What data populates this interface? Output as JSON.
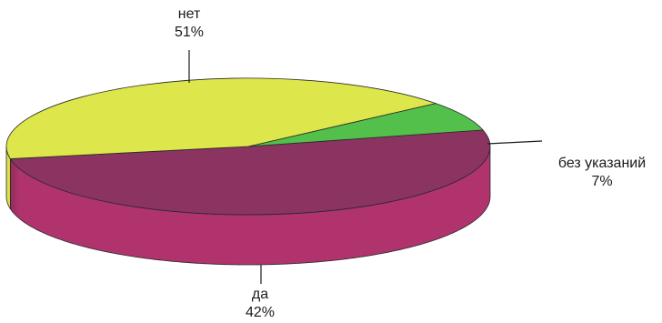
{
  "chart_data": {
    "type": "pie",
    "style": "3d",
    "slices": [
      {
        "label": "нет",
        "value": 51,
        "value_label": "51%",
        "color": "#8b3461"
      },
      {
        "label": "без указаний",
        "value": 7,
        "value_label": "7%",
        "color": "#52c04a"
      },
      {
        "label": "да",
        "value": 42,
        "value_label": "42%",
        "color": "#dde64a"
      }
    ]
  }
}
